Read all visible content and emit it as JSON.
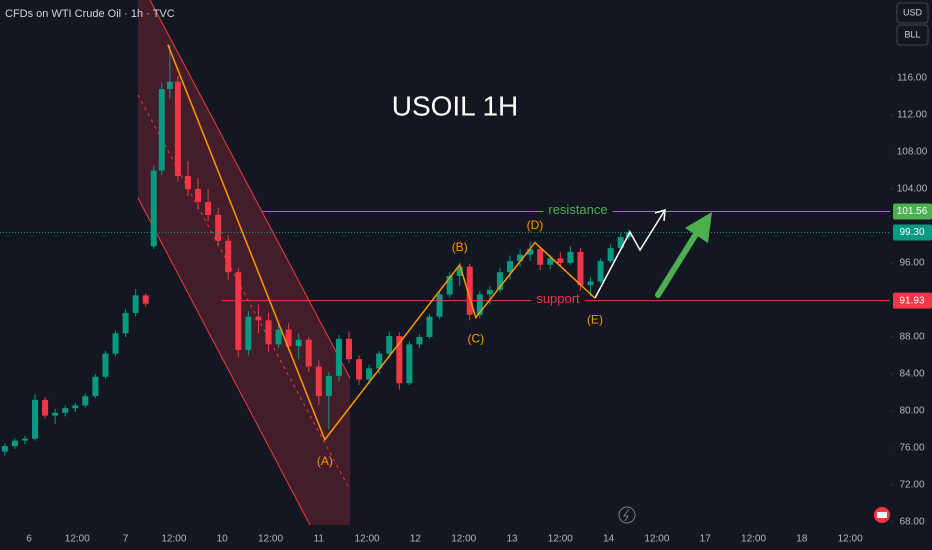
{
  "chart_data": {
    "type": "candlestick",
    "title": "USOIL 1H",
    "subtitle": "CFDs on WTI Crude Oil · 1h · TVC",
    "currency": "USD",
    "unit": "BLL",
    "up_color": "#089981",
    "down_color": "#f23645",
    "xlim": [
      -7.2,
      213.9
    ],
    "ylim": [
      66.05,
      124.43
    ],
    "xticks": [
      {
        "value": 0,
        "label": "6"
      },
      {
        "value": 12,
        "label": "12:00"
      },
      {
        "value": 24,
        "label": "7"
      },
      {
        "value": 36,
        "label": "12:00"
      },
      {
        "value": 48,
        "label": "10"
      },
      {
        "value": 60,
        "label": "12:00"
      },
      {
        "value": 72,
        "label": "11"
      },
      {
        "value": 84,
        "label": "12:00"
      },
      {
        "value": 96,
        "label": "12"
      },
      {
        "value": 108,
        "label": "12:00"
      },
      {
        "value": 120,
        "label": "13"
      },
      {
        "value": 132,
        "label": "12:00"
      },
      {
        "value": 144,
        "label": "14"
      },
      {
        "value": 156,
        "label": "12:00"
      },
      {
        "value": 168,
        "label": "17"
      },
      {
        "value": 180,
        "label": "12:00"
      },
      {
        "value": 192,
        "label": "18"
      },
      {
        "value": 204,
        "label": "12:00"
      }
    ],
    "yticks": [
      {
        "value": 68,
        "label": "68.00"
      },
      {
        "value": 72,
        "label": "72.00"
      },
      {
        "value": 76,
        "label": "76.00"
      },
      {
        "value": 80,
        "label": "80.00"
      },
      {
        "value": 84,
        "label": "84.00"
      },
      {
        "value": 88,
        "label": "88.00"
      },
      {
        "value": 96,
        "label": "96.00"
      },
      {
        "value": 104,
        "label": "104.00"
      },
      {
        "value": 108,
        "label": "108.00"
      },
      {
        "value": 112,
        "label": "112.00"
      },
      {
        "value": 116,
        "label": "116.00"
      }
    ],
    "candles": {
      "x": [
        -6,
        -3.5,
        -1,
        1.5,
        4,
        6.5,
        9,
        11.5,
        14,
        16.5,
        19,
        21.5,
        24,
        26.5,
        29,
        31,
        33,
        35,
        37,
        39.5,
        42,
        44.5,
        47,
        49.5,
        52,
        54.5,
        57,
        59.5,
        62,
        64.5,
        67,
        69.5,
        72,
        74.5,
        77,
        79.5,
        82,
        84.5,
        87,
        89.5,
        92,
        94.5,
        97,
        99.5,
        102,
        104.5,
        107,
        109.5,
        112,
        114.5,
        117,
        119.5,
        122,
        124.5,
        127,
        129.5,
        132,
        134.5,
        137,
        139.5,
        142,
        144.5,
        147,
        149
      ],
      "open": [
        75.6,
        76.2,
        76.8,
        77.0,
        81.2,
        79.5,
        79.8,
        80.3,
        80.6,
        81.6,
        83.7,
        86.2,
        88.4,
        90.6,
        92.5,
        97.8,
        106.0,
        114.8,
        115.6,
        105.4,
        104.0,
        102.6,
        101.2,
        98.4,
        95.0,
        86.6,
        90.2,
        89.8,
        87.2,
        88.8,
        87.0,
        87.7,
        84.8,
        81.6,
        83.8,
        87.8,
        85.6,
        83.4,
        84.6,
        86.2,
        88.1,
        83.0,
        87.2,
        88.0,
        90.2,
        92.6,
        94.6,
        95.6,
        90.4,
        92.6,
        93.1,
        95.0,
        96.2,
        96.9,
        97.5,
        95.8,
        96.5,
        96.0,
        97.2,
        93.6,
        94.0,
        96.2,
        97.6,
        98.8
      ],
      "high": [
        76.5,
        77.0,
        77.3,
        81.8,
        81.5,
        80.2,
        80.6,
        80.9,
        81.9,
        84.0,
        86.5,
        88.7,
        91.0,
        93.2,
        92.7,
        106.5,
        115.5,
        119.6,
        116.2,
        107.0,
        105.2,
        104.0,
        102.0,
        99.0,
        95.5,
        90.8,
        91.5,
        90.6,
        89.6,
        89.5,
        88.4,
        88.0,
        85.5,
        84.2,
        88.2,
        88.6,
        86.0,
        85.0,
        86.5,
        88.6,
        88.5,
        87.5,
        88.3,
        90.5,
        93.0,
        95.0,
        96.0,
        95.9,
        93.0,
        93.5,
        95.5,
        96.8,
        97.5,
        98.3,
        97.8,
        96.9,
        97.2,
        97.8,
        97.6,
        94.5,
        96.5,
        98.0,
        99.2,
        99.6
      ],
      "low": [
        75.2,
        75.9,
        76.4,
        76.8,
        79.2,
        78.6,
        79.4,
        79.9,
        80.4,
        81.4,
        83.5,
        85.9,
        88.0,
        90.2,
        91.3,
        97.5,
        105.5,
        113.8,
        104.8,
        103.2,
        101.8,
        100.5,
        97.8,
        94.2,
        85.8,
        86.0,
        88.4,
        86.4,
        86.8,
        86.5,
        85.6,
        84.2,
        80.6,
        78.0,
        83.2,
        85.2,
        82.8,
        82.9,
        84.0,
        85.8,
        82.3,
        82.8,
        86.8,
        87.8,
        89.9,
        92.3,
        93.5,
        89.8,
        90.0,
        91.5,
        92.8,
        94.2,
        95.6,
        96.2,
        95.2,
        95.3,
        95.6,
        95.8,
        93.0,
        92.4,
        93.8,
        96.0,
        97.3,
        98.5
      ],
      "close": [
        76.2,
        76.8,
        77.0,
        81.2,
        79.5,
        79.8,
        80.3,
        80.6,
        81.6,
        83.7,
        86.2,
        88.4,
        90.6,
        92.5,
        91.6,
        106.0,
        114.8,
        115.6,
        105.4,
        104.0,
        102.6,
        101.2,
        98.4,
        95.0,
        86.6,
        90.2,
        89.8,
        87.2,
        88.8,
        87.0,
        87.7,
        84.8,
        81.6,
        83.8,
        87.8,
        85.6,
        83.4,
        84.6,
        86.2,
        88.1,
        83.0,
        87.2,
        88.0,
        90.2,
        92.6,
        94.6,
        95.6,
        90.4,
        92.6,
        93.1,
        95.0,
        96.2,
        96.9,
        97.5,
        95.8,
        96.5,
        96.0,
        97.2,
        93.6,
        94.0,
        96.2,
        97.6,
        98.8,
        99.3
      ]
    },
    "levels": [
      {
        "name": "resistance",
        "value": 101.56,
        "label": "101.56",
        "color": "#4caf50"
      },
      {
        "name": "support",
        "value": 91.93,
        "label": "91.93",
        "color": "#f23645"
      }
    ],
    "last_price": {
      "value": 99.3,
      "label": "99.30",
      "color": "#089981"
    },
    "wave": {
      "x": [
        34.5,
        73.5,
        107,
        111,
        125.7,
        140.6
      ],
      "y": [
        119.6,
        76.9,
        95.8,
        90.1,
        98.2,
        92.2
      ],
      "labels": [
        null,
        "(A)",
        "(B)",
        "(C)",
        "(D)",
        "(E)"
      ],
      "color": "#ff9800"
    }
  }
}
